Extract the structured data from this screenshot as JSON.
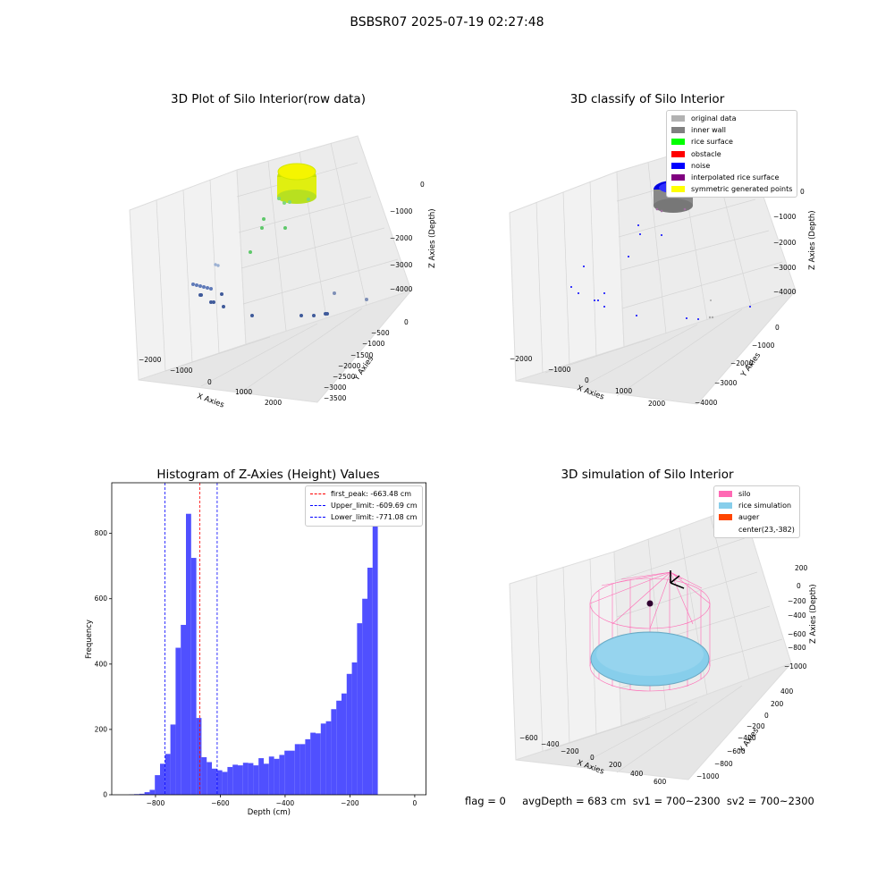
{
  "page_title": "BSBSR07 2025-07-19 02:27:48",
  "footer": {
    "text": "flag = 0     avgDepth = 683 cm  sv1 = 700~2300  sv2 = 700~2300"
  },
  "chart_data": [
    {
      "type": "scatter3d",
      "title": "3D Plot of Silo Interior(row data)",
      "xlabel": "X Axies",
      "ylabel": "Y Axies",
      "zlabel": "Z Axies (Depth)",
      "xticks": [
        "−2000",
        "−1000",
        "0",
        "1000",
        "2000"
      ],
      "yticks": [
        "0",
        "−500",
        "−1000",
        "−1500",
        "−2000",
        "−2500",
        "−3000",
        "−3500"
      ],
      "zticks": [
        "0",
        "−1000",
        "−2000",
        "−3000",
        "−4000"
      ],
      "grid": true
    },
    {
      "type": "scatter3d",
      "title": "3D classify of Silo Interior",
      "xlabel": "X Axies",
      "ylabel": "Y Axies",
      "zlabel": "Z Axies (Depth)",
      "xticks": [
        "−2000",
        "−1000",
        "0",
        "1000",
        "2000"
      ],
      "yticks": [
        "0",
        "−1000",
        "−2000",
        "−3000",
        "−4000"
      ],
      "zticks": [
        "0",
        "−1000",
        "−2000",
        "−3000",
        "−4000"
      ],
      "grid": true,
      "legend": {
        "placement": "top-right",
        "entries": [
          {
            "label": "original data",
            "color": "#b2b2b2"
          },
          {
            "label": "inner wall",
            "color": "#808080"
          },
          {
            "label": "rice surface",
            "color": "#00ff00"
          },
          {
            "label": "obstacle",
            "color": "#ff0000"
          },
          {
            "label": "noise",
            "color": "#0000ff"
          },
          {
            "label": "interpolated rice surface",
            "color": "#800080"
          },
          {
            "label": "symmetric generated points",
            "color": "#ffff00"
          }
        ]
      }
    },
    {
      "type": "bar",
      "title": "Histogram of Z-Axies (Height) Values",
      "xlabel": "Depth (cm)",
      "ylabel": "Frequency",
      "xlim": [
        -935,
        35
      ],
      "ylim": [
        0,
        955
      ],
      "xticks": [
        {
          "v": -800,
          "label": "−800"
        },
        {
          "v": -600,
          "label": "−600"
        },
        {
          "v": -400,
          "label": "−400"
        },
        {
          "v": -200,
          "label": "−200"
        },
        {
          "v": 0,
          "label": "0"
        }
      ],
      "yticks": [
        {
          "v": 0,
          "label": "0"
        },
        {
          "v": 200,
          "label": "200"
        },
        {
          "v": 400,
          "label": "400"
        },
        {
          "v": 600,
          "label": "600"
        },
        {
          "v": 800,
          "label": "800"
        }
      ],
      "bar_color": "#5050ff",
      "bin_start": -882,
      "bin_width": 16,
      "values": [
        1,
        2,
        3,
        8,
        15,
        60,
        95,
        125,
        215,
        450,
        520,
        860,
        725,
        235,
        115,
        100,
        80,
        75,
        70,
        85,
        92,
        90,
        98,
        97,
        90,
        112,
        95,
        117,
        110,
        122,
        135,
        135,
        155,
        155,
        170,
        190,
        188,
        218,
        225,
        262,
        288,
        310,
        370,
        405,
        525,
        600,
        695,
        900
      ],
      "lines": [
        {
          "x": -663.48,
          "color": "#ff0000",
          "label": "first_peak: -663.48 cm"
        },
        {
          "x": -609.69,
          "color": "#0000ff",
          "label": "Upper_limit: -609.69 cm"
        },
        {
          "x": -771.08,
          "color": "#0000ff",
          "label": "Lower_limit: -771.08 cm"
        }
      ],
      "legend_placement": "top-right"
    },
    {
      "type": "surface3d",
      "title": "3D simulation of Silo Interior",
      "xlabel": "X Axies",
      "ylabel": "Y Axies",
      "zlabel": "Z Axies (Depth)",
      "xticks": [
        "−600",
        "−400",
        "−200",
        "0",
        "200",
        "400",
        "600"
      ],
      "yticks": [
        "400",
        "200",
        "0",
        "−200",
        "−400",
        "−600",
        "−800",
        "−1000"
      ],
      "zticks": [
        "200",
        "0",
        "−200",
        "−400",
        "−600",
        "−800",
        "−1000"
      ],
      "grid": true,
      "legend": {
        "placement": "top-right",
        "entries": [
          {
            "label": "silo",
            "color": "#ff69b4"
          },
          {
            "label": "rice simulation",
            "color": "#87ceeb"
          },
          {
            "label": "auger",
            "color": "#ff4500"
          },
          {
            "label": "center(23,-382)",
            "color": ""
          }
        ]
      }
    }
  ]
}
